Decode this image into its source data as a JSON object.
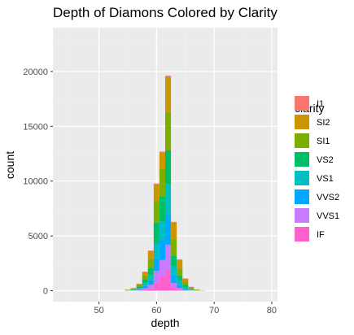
{
  "chart_data": {
    "type": "bar",
    "stacked": true,
    "title": "Depth of Diamons Colored by Clarity",
    "xlabel": "depth",
    "ylabel": "count",
    "xlim": [
      42,
      81
    ],
    "ylim": [
      -1000,
      24000
    ],
    "x_ticks": [
      50,
      60,
      70,
      80
    ],
    "y_ticks": [
      0,
      5000,
      10000,
      15000,
      20000
    ],
    "x_tick_labels": [
      "50",
      "60",
      "70",
      "80"
    ],
    "y_tick_labels": [
      "0",
      "5000",
      "10000",
      "15000",
      "20000"
    ],
    "grid": true,
    "legend_position": "right",
    "legend_title": "clarity",
    "categories": [
      "55",
      "56",
      "57",
      "58",
      "59",
      "60",
      "61",
      "62",
      "63",
      "64",
      "65",
      "66",
      "67",
      "68"
    ],
    "series": [
      {
        "name": "I1",
        "color": "#F8766D",
        "values": [
          10,
          10,
          20,
          40,
          60,
          80,
          100,
          120,
          80,
          60,
          40,
          20,
          10,
          5
        ]
      },
      {
        "name": "SI2",
        "color": "#CD9600",
        "values": [
          20,
          40,
          100,
          300,
          700,
          1500,
          1500,
          3200,
          1500,
          800,
          300,
          100,
          40,
          10
        ]
      },
      {
        "name": "SI1",
        "color": "#7CAE00",
        "values": [
          20,
          50,
          150,
          400,
          800,
          2000,
          2500,
          3500,
          1500,
          600,
          250,
          80,
          30,
          10
        ]
      },
      {
        "name": "VS2",
        "color": "#00BE67",
        "values": [
          20,
          50,
          130,
          350,
          700,
          1900,
          2300,
          3100,
          1000,
          500,
          200,
          60,
          20,
          5
        ]
      },
      {
        "name": "VS1",
        "color": "#00BFC4",
        "values": [
          10,
          30,
          80,
          220,
          450,
          1300,
          1700,
          2800,
          700,
          350,
          150,
          40,
          10,
          5
        ]
      },
      {
        "name": "VVS2",
        "color": "#00A9FF",
        "values": [
          10,
          30,
          70,
          200,
          400,
          1200,
          1800,
          2700,
          800,
          300,
          100,
          30,
          10,
          0
        ]
      },
      {
        "name": "VVS1",
        "color": "#C77CFF",
        "values": [
          5,
          20,
          60,
          150,
          350,
          1100,
          1500,
          2300,
          400,
          150,
          50,
          20,
          5,
          0
        ]
      },
      {
        "name": "IF",
        "color": "#FF61CC",
        "values": [
          5,
          10,
          30,
          80,
          200,
          700,
          1300,
          1900,
          300,
          100,
          30,
          10,
          5,
          0
        ]
      }
    ]
  },
  "colors": {
    "panel_background": "#EBEBEB",
    "grid_major": "#FFFFFF",
    "grid_minor": "#F2F2F2"
  }
}
